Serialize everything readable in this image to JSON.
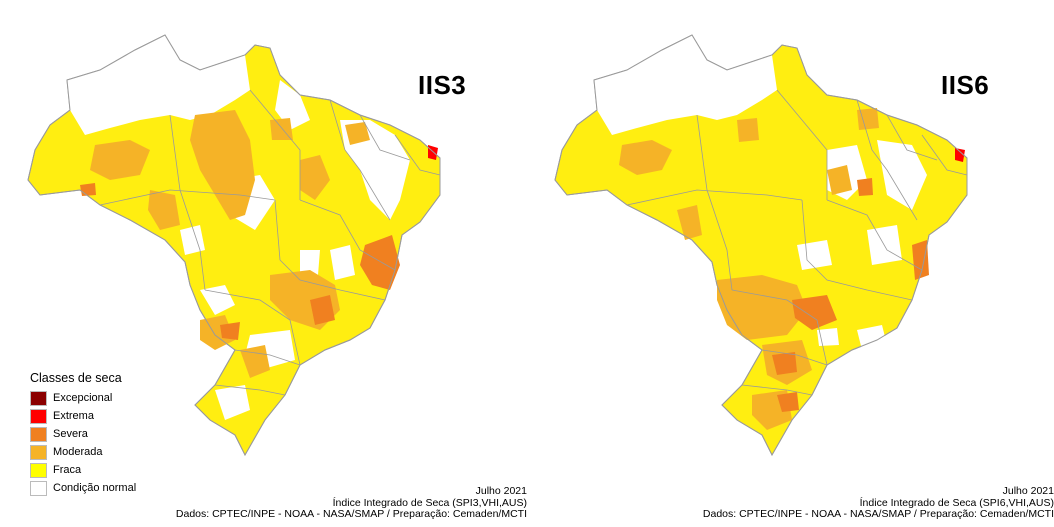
{
  "panels": [
    {
      "title": "IIS3",
      "caption": {
        "line1": "Julho 2021",
        "line2": "Índice Integrado de Seca (SPI3,VHI,AUS)",
        "line3": "Dados: CPTEC/INPE - NOAA - NASA/SMAP / Preparação: Cemaden/MCTI"
      }
    },
    {
      "title": "IIS6",
      "caption": {
        "line1": "Julho 2021",
        "line2": "Índice Integrado de Seca (SPI6,VHI,AUS)",
        "line3": "Dados: CPTEC/INPE - NOAA - NASA/SMAP / Preparação: Cemaden/MCTI"
      }
    }
  ],
  "legend": {
    "title": "Classes de seca",
    "items": [
      {
        "label": "Excepcional",
        "color": "#8b0000"
      },
      {
        "label": "Extrema",
        "color": "#ff0000"
      },
      {
        "label": "Severa",
        "color": "#f08020"
      },
      {
        "label": "Moderada",
        "color": "#f5b327"
      },
      {
        "label": "Fraca",
        "color": "#ffff00"
      },
      {
        "label": "Condição normal",
        "color": "#ffffff"
      }
    ]
  },
  "colors": {
    "fraca": "#ffee11",
    "moderada": "#f5b327",
    "severa": "#f08020",
    "extrema": "#ff0000",
    "normal": "#ffffff",
    "border": "#9a9a9a"
  }
}
